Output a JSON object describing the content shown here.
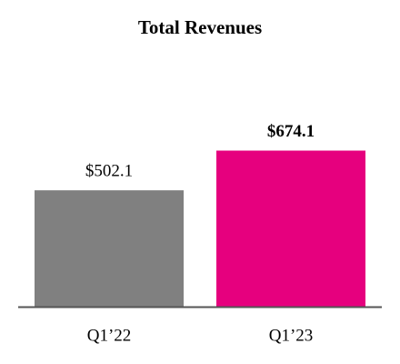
{
  "chart_data": {
    "type": "bar",
    "title": "Total Revenues",
    "categories": [
      "Q1’22",
      "Q1’23"
    ],
    "values": [
      502.1,
      674.1
    ],
    "value_labels": [
      "$502.1",
      "$674.1"
    ],
    "colors": [
      "#808080",
      "#e6007e"
    ],
    "value_label_bold": [
      false,
      true
    ]
  }
}
